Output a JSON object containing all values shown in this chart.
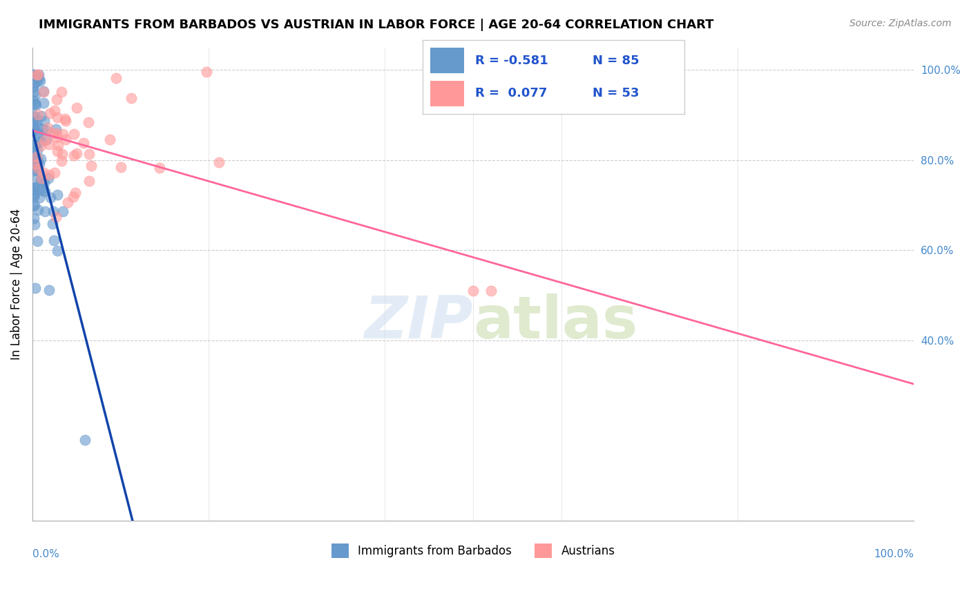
{
  "title": "IMMIGRANTS FROM BARBADOS VS AUSTRIAN IN LABOR FORCE | AGE 20-64 CORRELATION CHART",
  "source": "Source: ZipAtlas.com",
  "ylabel": "In Labor Force | Age 20-64",
  "blue_R": -0.581,
  "blue_N": 85,
  "pink_R": 0.077,
  "pink_N": 53,
  "blue_label": "Immigrants from Barbados",
  "pink_label": "Austrians",
  "blue_color": "#6699CC",
  "pink_color": "#FF9999",
  "blue_line_color": "#1144AA",
  "pink_line_color": "#FF6699"
}
